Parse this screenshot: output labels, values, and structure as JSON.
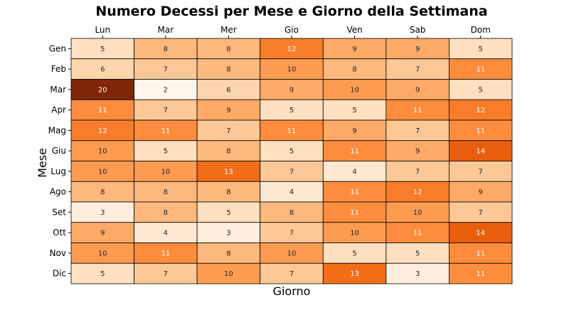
{
  "chart_data": {
    "type": "heatmap",
    "title": "Numero Decessi per Mese e Giorno della Settimana",
    "xlabel": "Giorno",
    "ylabel": "Mese",
    "x_categories": [
      "Lun",
      "Mar",
      "Mer",
      "Gio",
      "Ven",
      "Sab",
      "Dom"
    ],
    "y_categories": [
      "Gen",
      "Feb",
      "Mar",
      "Apr",
      "Mag",
      "Giu",
      "Lug",
      "Ago",
      "Set",
      "Ott",
      "Nov",
      "Dic"
    ],
    "values": [
      [
        5,
        8,
        8,
        12,
        9,
        9,
        5
      ],
      [
        6,
        7,
        8,
        10,
        8,
        7,
        11
      ],
      [
        20,
        2,
        6,
        9,
        10,
        9,
        5
      ],
      [
        11,
        7,
        9,
        5,
        5,
        11,
        12
      ],
      [
        12,
        11,
        7,
        11,
        9,
        7,
        11
      ],
      [
        10,
        5,
        8,
        5,
        11,
        9,
        14
      ],
      [
        10,
        10,
        13,
        7,
        4,
        7,
        7
      ],
      [
        8,
        8,
        8,
        4,
        11,
        12,
        9
      ],
      [
        3,
        8,
        5,
        8,
        11,
        10,
        7
      ],
      [
        9,
        4,
        3,
        7,
        10,
        11,
        14
      ],
      [
        10,
        11,
        8,
        10,
        5,
        5,
        11
      ],
      [
        5,
        7,
        10,
        7,
        13,
        3,
        11
      ]
    ],
    "value_range": [
      2,
      20
    ],
    "colormap": "Oranges",
    "x_ticks_position": "top",
    "cell_borders": true,
    "grid": false,
    "colorbar": false
  },
  "colors": {
    "background": "#ffffff",
    "cell_border": "#000000",
    "text_dark": "#262626",
    "text_light": "#ffffff",
    "colormap_stops": [
      "#fff5eb",
      "#fee6ce",
      "#fdd0a2",
      "#fdae6b",
      "#fd8d3c",
      "#f16913",
      "#d94801",
      "#a63603",
      "#7f2704"
    ]
  }
}
